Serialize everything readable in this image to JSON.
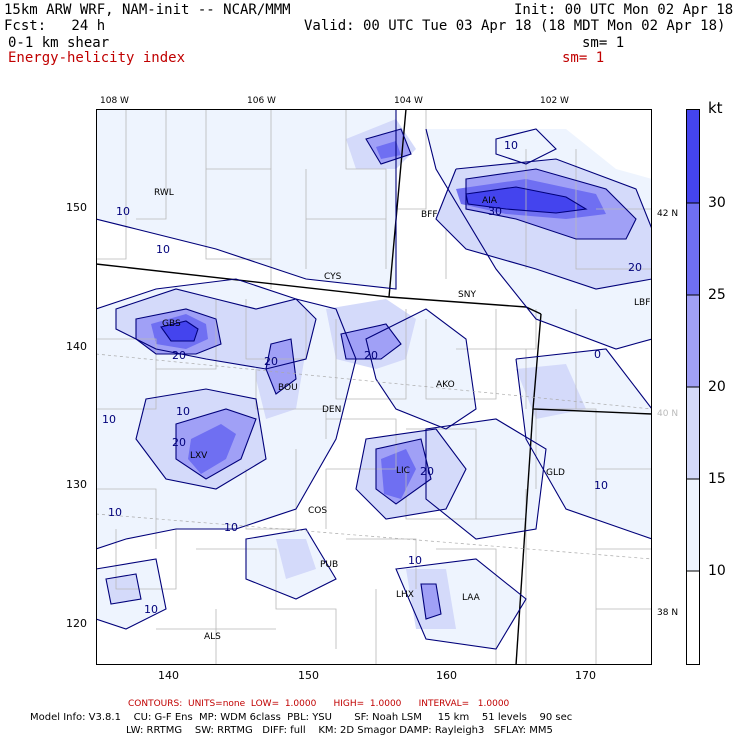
{
  "header": {
    "model": "15km ARW WRF, NAM-init -- NCAR/MMM",
    "init": "Init: 00 UTC Mon 02 Apr 18",
    "fcst_label": "Fcst:   24 h",
    "valid": "Valid: 00 UTC Tue 03 Apr 18 (18 MDT Mon 02 Apr 18)",
    "field1": "0-1 km shear",
    "sm1": "sm= 1",
    "field2": "Energy-helicity index",
    "sm2": "sm= 1"
  },
  "axes": {
    "top_lon": [
      "108 W",
      "106 W",
      "104 W",
      "102 W"
    ],
    "left_y": [
      "150",
      "140",
      "130",
      "120"
    ],
    "bottom_x": [
      "140",
      "150",
      "160",
      "170"
    ],
    "right_lat": [
      "42 N",
      "40 N",
      "38 N"
    ]
  },
  "legend": {
    "unit": "kt",
    "ticks": [
      "30",
      "25",
      "20",
      "15",
      "10"
    ],
    "colors": [
      "#4444ee",
      "#6f6ff2",
      "#a0a0f6",
      "#d4dafa",
      "#eef4fe",
      "#ffffff"
    ]
  },
  "stations": [
    "RWL",
    "BFF",
    "AIA",
    "CYS",
    "SNY",
    "LBF",
    "GBS",
    "BOU",
    "AKO",
    "DEN",
    "LXV",
    "LIC",
    "GLD",
    "COS",
    "PUB",
    "LHX",
    "LAA",
    "ALS"
  ],
  "contour_labels": [
    "10",
    "10",
    "10",
    "10",
    "10",
    "10",
    "10",
    "10",
    "10",
    "10",
    "20",
    "20",
    "20",
    "20",
    "20",
    "20",
    "30",
    "0"
  ],
  "footer": {
    "contours_line": "CONTOURS:  UNITS=none  LOW=  1.0000      HIGH=  1.0000      INTERVAL=   1.0000",
    "model_info_1": "Model Info: V3.8.1    CU: G-F Ens  MP: WDM 6class  PBL: YSU       SF: Noah LSM     15 km    51 levels    90 sec",
    "model_info_2": "LW: RRTMG    SW: RRTMG   DIFF: full    KM: 2D Smagor DAMP: Rayleigh3   SFLAY: MM5"
  }
}
